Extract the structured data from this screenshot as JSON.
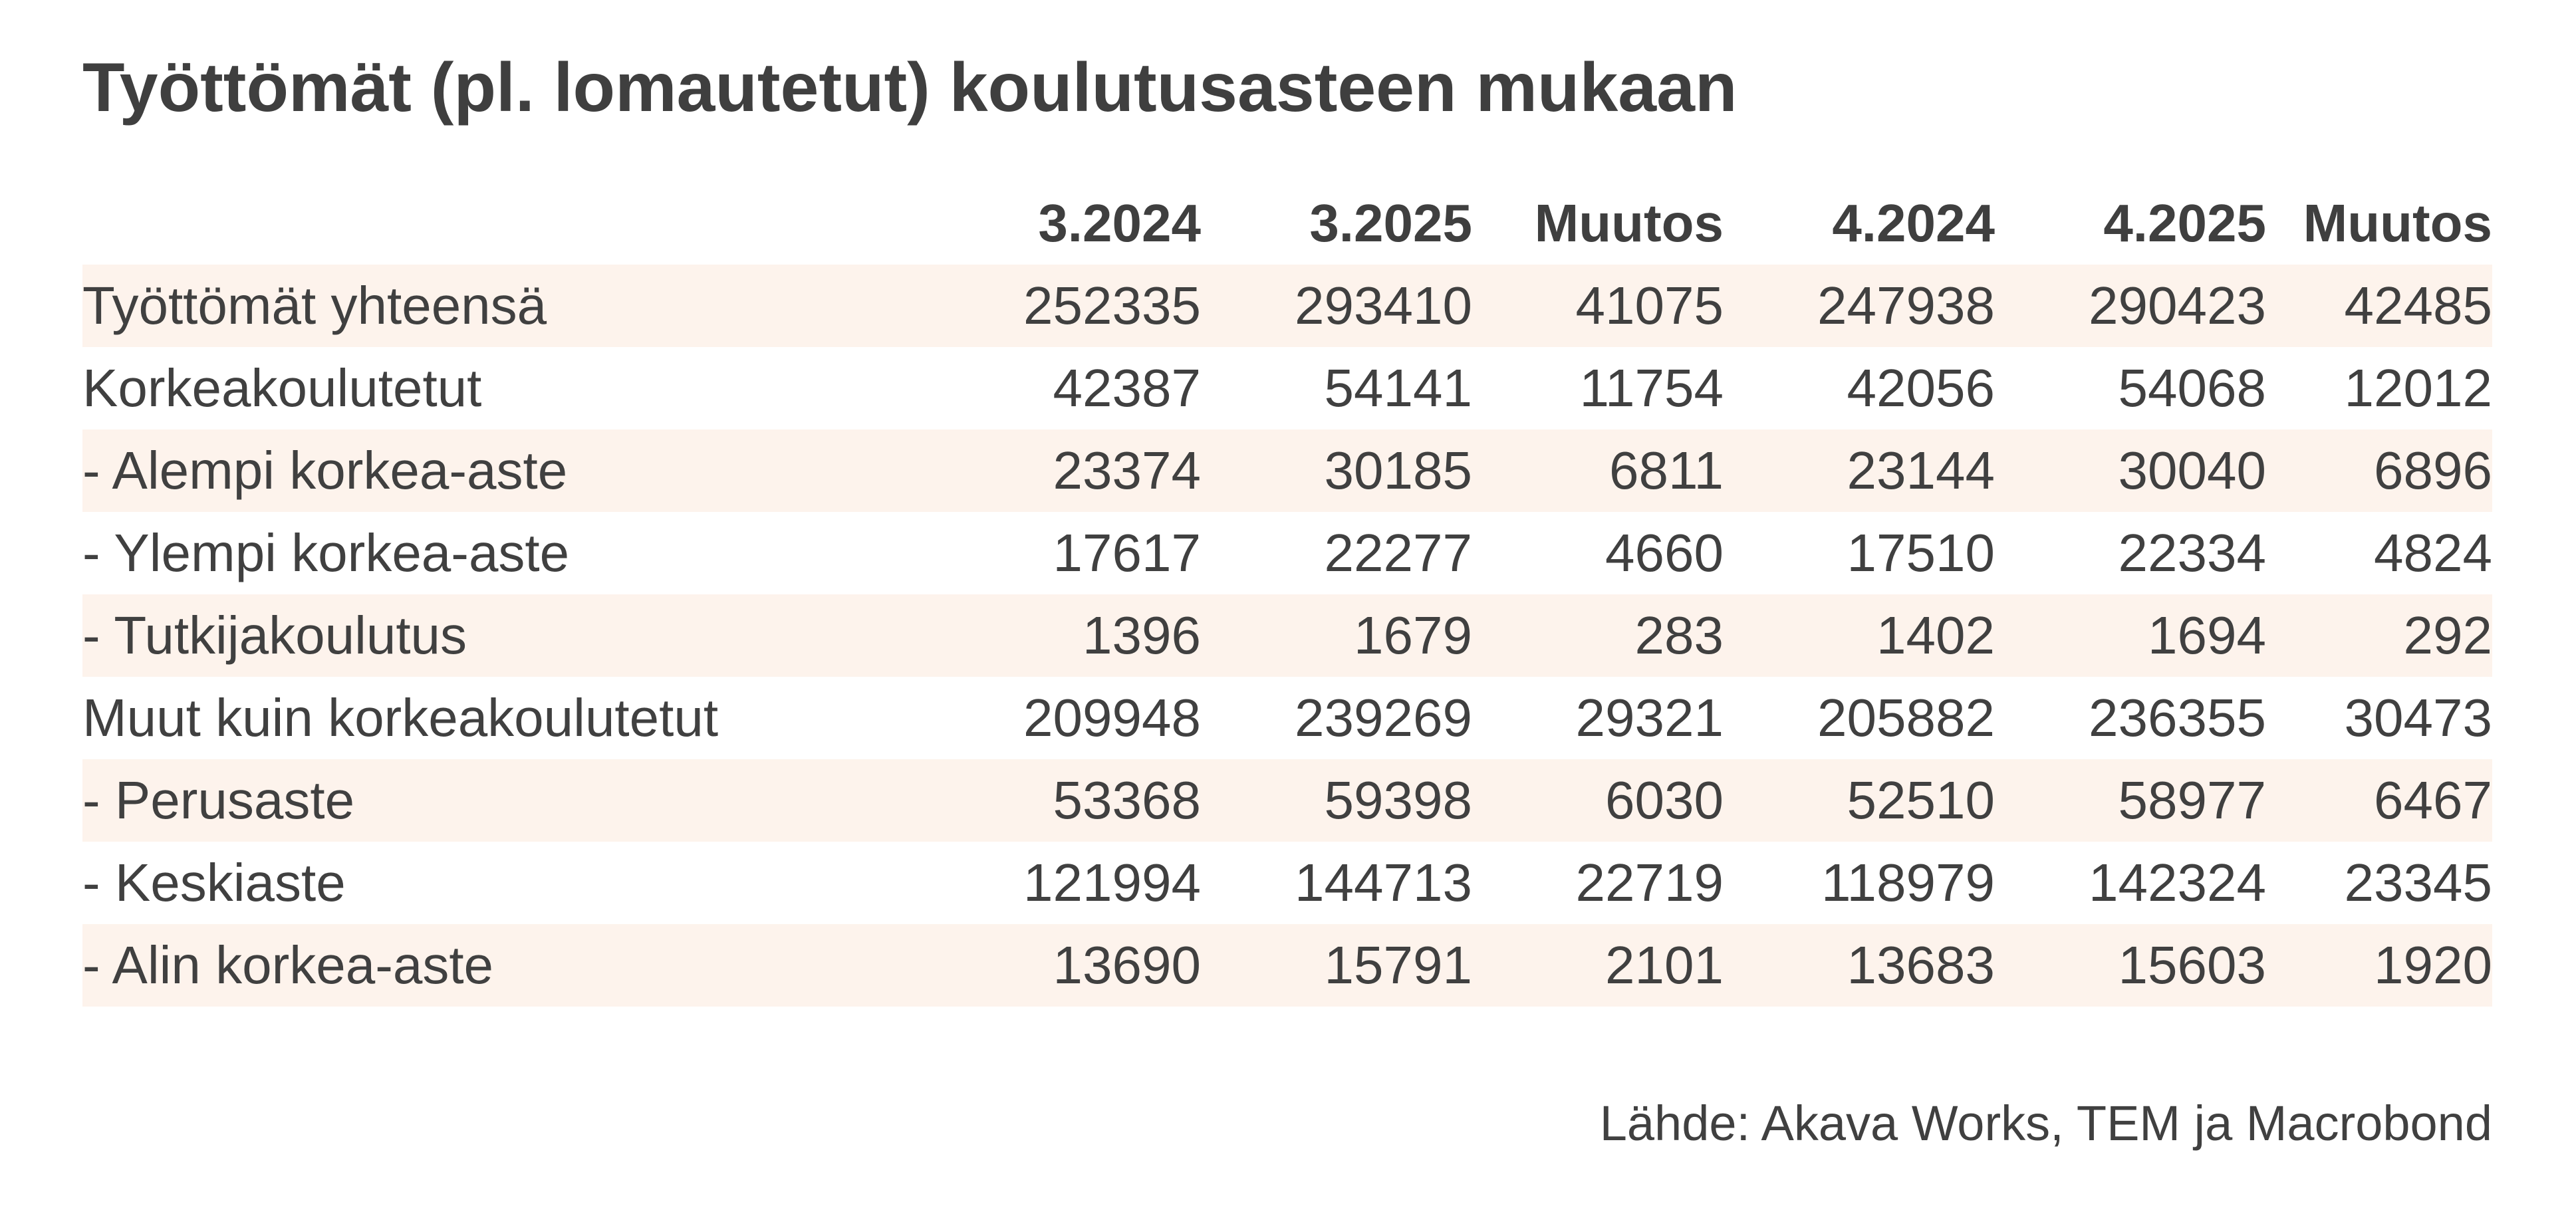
{
  "title": "Työttömät (pl. lomautetut) koulutusasteen mukaan",
  "source": "Lähde: Akava Works, TEM ja Macrobond",
  "colors": {
    "row_shade": "#fdf3ec",
    "text": "#404040"
  },
  "chart_data": {
    "type": "table",
    "title": "Työttömät (pl. lomautetut) koulutusasteen mukaan",
    "columns": [
      "",
      "3.2024",
      "3.2025",
      "Muutos",
      "4.2024",
      "4.2025",
      "Muutos"
    ],
    "rows": [
      {
        "label": "Työttömät yhteensä",
        "values": [
          252335,
          293410,
          41075,
          247938,
          290423,
          42485
        ]
      },
      {
        "label": "Korkeakoulutetut",
        "values": [
          42387,
          54141,
          11754,
          42056,
          54068,
          12012
        ]
      },
      {
        "label": "- Alempi korkea-aste",
        "values": [
          23374,
          30185,
          6811,
          23144,
          30040,
          6896
        ]
      },
      {
        "label": "- Ylempi korkea-aste",
        "values": [
          17617,
          22277,
          4660,
          17510,
          22334,
          4824
        ]
      },
      {
        "label": "- Tutkijakoulutus",
        "values": [
          1396,
          1679,
          283,
          1402,
          1694,
          292
        ]
      },
      {
        "label": "Muut kuin korkeakoulutetut",
        "values": [
          209948,
          239269,
          29321,
          205882,
          236355,
          30473
        ]
      },
      {
        "label": "- Perusaste",
        "values": [
          53368,
          59398,
          6030,
          52510,
          58977,
          6467
        ]
      },
      {
        "label": "- Keskiaste",
        "values": [
          121994,
          144713,
          22719,
          118979,
          142324,
          23345
        ]
      },
      {
        "label": "- Alin korkea-aste",
        "values": [
          13690,
          15791,
          2101,
          13683,
          15603,
          1920
        ]
      }
    ]
  }
}
